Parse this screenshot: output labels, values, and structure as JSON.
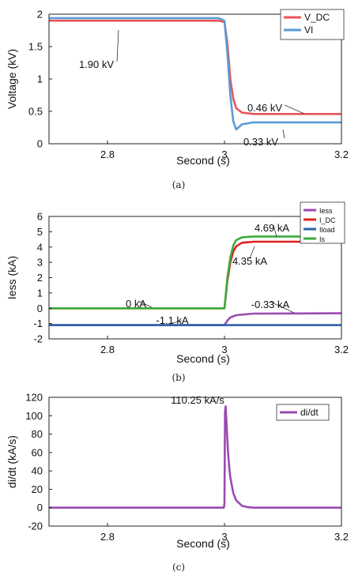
{
  "chart_data": [
    {
      "type": "line",
      "caption": "(a)",
      "xlabel": "Second (s)",
      "ylabel": "Voltage (kV)",
      "xlim": [
        2.7,
        3.2
      ],
      "ylim": [
        0,
        2
      ],
      "xticks": [
        2.8,
        3,
        3.2
      ],
      "xtick_labels": [
        "2.8",
        "3",
        "3.2"
      ],
      "yticks": [
        0,
        0.5,
        1,
        1.5,
        2
      ],
      "ytick_labels": [
        "0",
        "0.5",
        "1",
        "1.5",
        "2"
      ],
      "legend_position": "top-right",
      "series": [
        {
          "name": "V_DC",
          "color": "#e8545a",
          "x": [
            2.7,
            2.99,
            3.0,
            3.005,
            3.01,
            3.015,
            3.02,
            3.03,
            3.05,
            3.2
          ],
          "values": [
            1.9,
            1.9,
            1.88,
            1.55,
            1.0,
            0.7,
            0.55,
            0.48,
            0.46,
            0.46
          ]
        },
        {
          "name": "VI",
          "color": "#5b9bd5",
          "x": [
            2.7,
            2.99,
            3.0,
            3.005,
            3.01,
            3.015,
            3.02,
            3.03,
            3.05,
            3.2
          ],
          "values": [
            1.94,
            1.94,
            1.9,
            1.4,
            0.75,
            0.35,
            0.22,
            0.3,
            0.33,
            0.33
          ]
        }
      ],
      "annotations": [
        {
          "text": "1.90 kV",
          "x": 2.74,
          "y": 1.9
        },
        {
          "text": "0.46 kV",
          "x": 3.12,
          "y": 0.46
        },
        {
          "text": "0.33 kV",
          "x": 3.12,
          "y": 0.33
        }
      ]
    },
    {
      "type": "line",
      "caption": "(b)",
      "xlabel": "Second (s)",
      "ylabel": "Iess (kA)",
      "xlim": [
        2.7,
        3.2
      ],
      "ylim": [
        -2,
        6
      ],
      "xticks": [
        2.8,
        3,
        3.2
      ],
      "xtick_labels": [
        "2.8",
        "3",
        "3.2"
      ],
      "yticks": [
        -2,
        -1,
        0,
        1,
        2,
        3,
        4,
        5,
        6
      ],
      "ytick_labels": [
        "-2",
        "-1",
        "0",
        "1",
        "2",
        "3",
        "4",
        "5",
        "6"
      ],
      "legend_position": "top-right",
      "series": [
        {
          "name": "Iess",
          "color": "#9b4bb0",
          "x": [
            2.7,
            2.999,
            3.0,
            3.005,
            3.01,
            3.02,
            3.05,
            3.2
          ],
          "values": [
            -1.1,
            -1.1,
            -1.1,
            -0.8,
            -0.6,
            -0.45,
            -0.35,
            -0.33
          ]
        },
        {
          "name": "I_DC",
          "color": "#e02020",
          "x": [
            2.7,
            2.999,
            3.0,
            3.005,
            3.01,
            3.015,
            3.02,
            3.03,
            3.05,
            3.2
          ],
          "values": [
            0,
            0,
            0,
            1.8,
            3.0,
            3.7,
            4.05,
            4.28,
            4.35,
            4.35
          ]
        },
        {
          "name": "Iload",
          "color": "#2e63a8",
          "x": [
            2.7,
            3.2
          ],
          "values": [
            -1.1,
            -1.1
          ]
        },
        {
          "name": "Is",
          "color": "#3cab3c",
          "x": [
            2.7,
            2.999,
            3.0,
            3.005,
            3.01,
            3.015,
            3.02,
            3.03,
            3.05,
            3.2
          ],
          "values": [
            0,
            0,
            0,
            2.0,
            3.3,
            4.1,
            4.45,
            4.64,
            4.69,
            4.69
          ]
        }
      ],
      "annotations": [
        {
          "text": "4.69 kA",
          "x": 3.12,
          "y": 4.69
        },
        {
          "text": "4.35 kA",
          "x": 3.05,
          "y": 4.35
        },
        {
          "text": "0 kA",
          "x": 2.88,
          "y": 0
        },
        {
          "text": "-1.1 kA",
          "x": 2.92,
          "y": -1.1
        },
        {
          "text": "-0.33 kA",
          "x": 3.12,
          "y": -0.33
        }
      ]
    },
    {
      "type": "line",
      "caption": "(c)",
      "xlabel": "Second (s)",
      "ylabel": "di/dt (kA/s)",
      "xlim": [
        2.7,
        3.2
      ],
      "ylim": [
        -20,
        120
      ],
      "xticks": [
        2.8,
        3,
        3.2
      ],
      "xtick_labels": [
        "2.8",
        "3",
        "3.2"
      ],
      "yticks": [
        -20,
        0,
        20,
        40,
        60,
        80,
        100,
        120
      ],
      "ytick_labels": [
        "-20",
        "0",
        "20",
        "40",
        "60",
        "80",
        "100",
        "120"
      ],
      "legend_position": "top-right",
      "series": [
        {
          "name": "di/dt",
          "color": "#9b4bb0",
          "x": [
            2.7,
            2.999,
            3.0,
            3.001,
            3.002,
            3.004,
            3.006,
            3.008,
            3.01,
            3.015,
            3.02,
            3.03,
            3.04,
            3.05,
            3.2
          ],
          "values": [
            0,
            0,
            5,
            105,
            110.25,
            85,
            62,
            45,
            33,
            16,
            8,
            2,
            0.5,
            0,
            0
          ]
        }
      ],
      "annotations": [
        {
          "text": "110.25 kA/s",
          "x": 3.0,
          "y": 110.25
        }
      ]
    }
  ]
}
